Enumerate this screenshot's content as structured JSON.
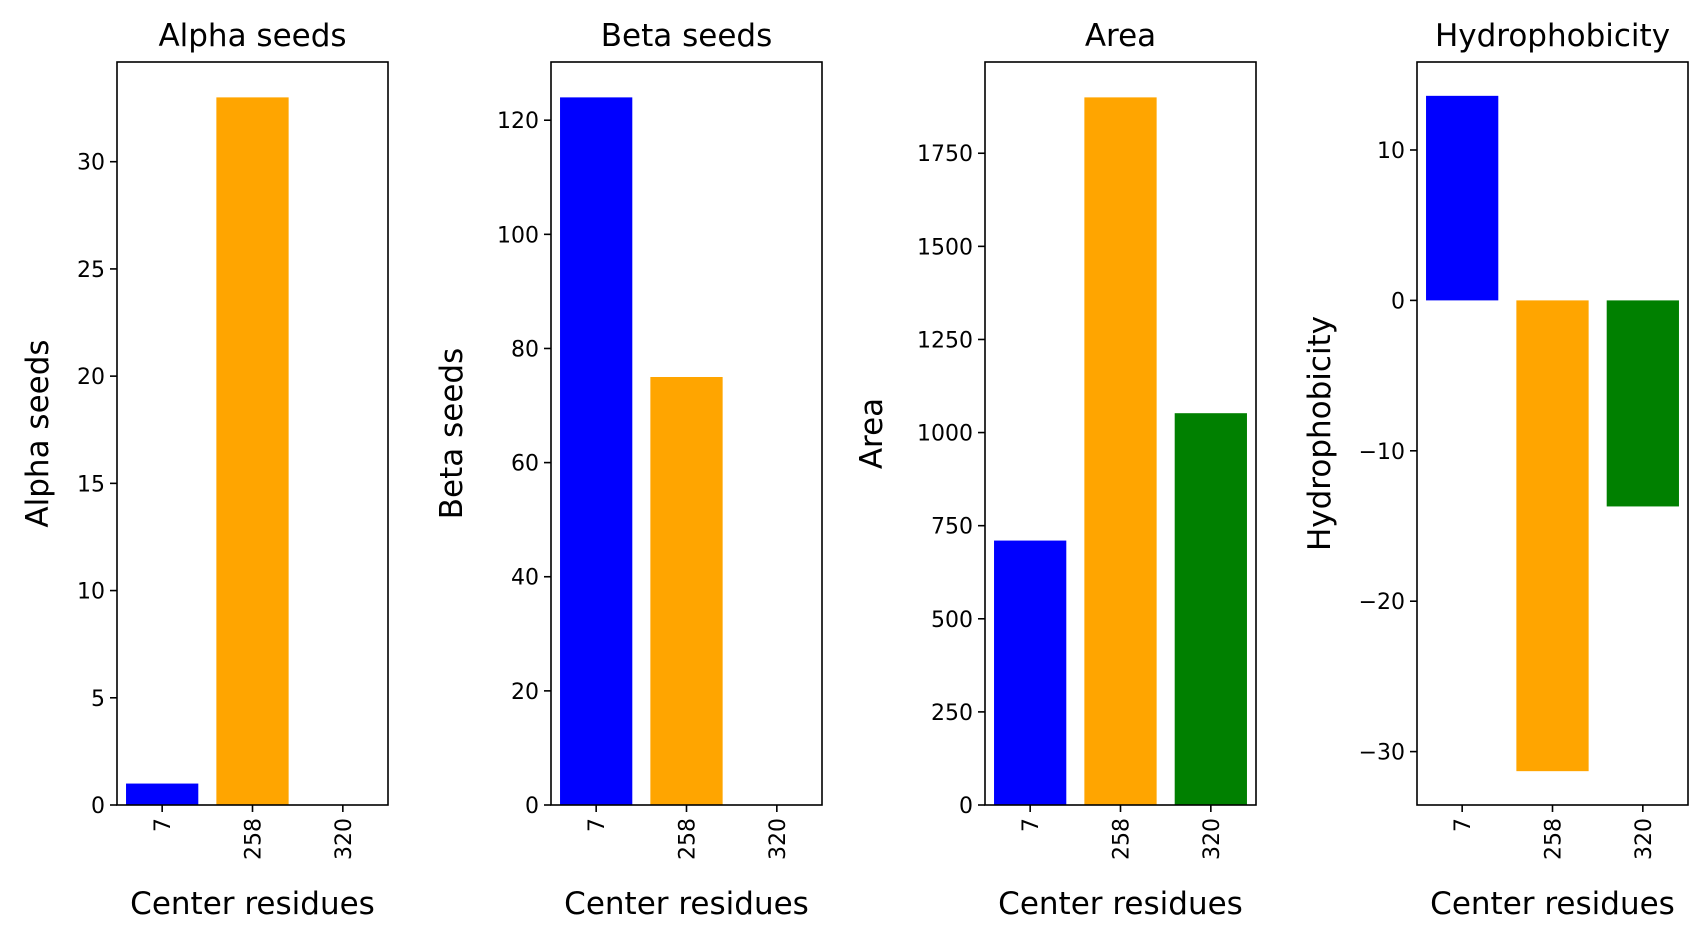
{
  "chart_data": [
    {
      "type": "bar",
      "title": "Alpha seeds",
      "xlabel": "Center residues",
      "ylabel": "Alpha seeds",
      "categories": [
        "7",
        "258",
        "320"
      ],
      "values": [
        1,
        33,
        0
      ],
      "colors": [
        "#0000ff",
        "#ffa500",
        "#008000"
      ],
      "ylim": [
        0,
        34.65
      ],
      "yticks": [
        0,
        5,
        10,
        15,
        20,
        25,
        30
      ],
      "yticklabels": [
        "0",
        "5",
        "10",
        "15",
        "20",
        "25",
        "30"
      ],
      "grid": false
    },
    {
      "type": "bar",
      "title": "Beta seeds",
      "xlabel": "Center residues",
      "ylabel": "Beta seeds",
      "categories": [
        "7",
        "258",
        "320"
      ],
      "values": [
        124,
        75,
        0
      ],
      "colors": [
        "#0000ff",
        "#ffa500",
        "#008000"
      ],
      "ylim": [
        0,
        130.2
      ],
      "yticks": [
        0,
        20,
        40,
        60,
        80,
        100,
        120
      ],
      "yticklabels": [
        "0",
        "20",
        "40",
        "60",
        "80",
        "100",
        "120"
      ],
      "grid": false
    },
    {
      "type": "bar",
      "title": "Area",
      "xlabel": "Center residues",
      "ylabel": "Area",
      "categories": [
        "7",
        "258",
        "320"
      ],
      "values": [
        710,
        1900,
        1052
      ],
      "colors": [
        "#0000ff",
        "#ffa500",
        "#008000"
      ],
      "ylim": [
        0,
        1995
      ],
      "yticks": [
        0,
        250,
        500,
        750,
        1000,
        1250,
        1500,
        1750
      ],
      "yticklabels": [
        "0",
        "250",
        "500",
        "750",
        "1000",
        "1250",
        "1500",
        "1750"
      ],
      "grid": false
    },
    {
      "type": "bar",
      "title": "Hydrophobicity",
      "xlabel": "Center residues",
      "ylabel": "Hydrophobicity",
      "categories": [
        "7",
        "258",
        "320"
      ],
      "values": [
        13.6,
        -31.3,
        -13.7
      ],
      "colors": [
        "#0000ff",
        "#ffa500",
        "#008000"
      ],
      "ylim": [
        -33.55,
        15.85
      ],
      "yticks": [
        -30,
        -20,
        -10,
        0,
        10
      ],
      "yticklabels": [
        "−30",
        "−20",
        "−10",
        "0",
        "10"
      ],
      "grid": false
    }
  ]
}
